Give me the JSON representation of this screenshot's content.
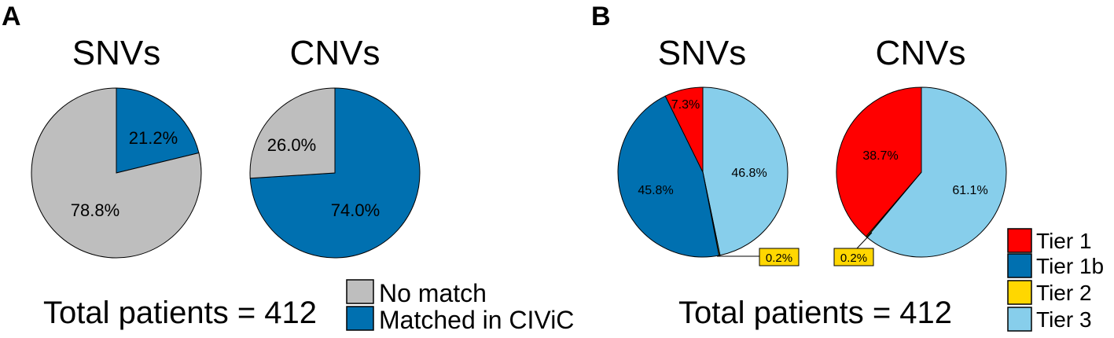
{
  "colors": {
    "no_match": "#BEBEBE",
    "matched": "#0070B0",
    "tier1": "#FF0000",
    "tier1b": "#0070B0",
    "tier2": "#FFD700",
    "tier3": "#87CEEB"
  },
  "panels": {
    "a": {
      "letter": "A",
      "total": "Total patients = 412"
    },
    "b": {
      "letter": "B",
      "total": "Total patients = 412"
    }
  },
  "legend_a": [
    "No match",
    "Matched in CIViC"
  ],
  "legend_b": [
    "Tier 1",
    "Tier 1b",
    "Tier 2",
    "Tier 3"
  ],
  "chart_data": [
    {
      "type": "pie",
      "panel": "A",
      "title": "SNVs",
      "slices": [
        {
          "name": "Matched in CIViC",
          "value": 21.2,
          "label": "21.2%",
          "color": "#0070B0"
        },
        {
          "name": "No match",
          "value": 78.8,
          "label": "78.8%",
          "color": "#BEBEBE"
        }
      ]
    },
    {
      "type": "pie",
      "panel": "A",
      "title": "CNVs",
      "slices": [
        {
          "name": "Matched in CIViC",
          "value": 74.0,
          "label": "74.0%",
          "color": "#0070B0"
        },
        {
          "name": "No match",
          "value": 26.0,
          "label": "26.0%",
          "color": "#BEBEBE"
        }
      ]
    },
    {
      "type": "pie",
      "panel": "B",
      "title": "SNVs",
      "slices": [
        {
          "name": "Tier 3",
          "value": 46.8,
          "label": "46.8%",
          "color": "#87CEEB"
        },
        {
          "name": "Tier 2",
          "value": 0.2,
          "label": "0.2%",
          "color": "#FFD700"
        },
        {
          "name": "Tier 1b",
          "value": 45.8,
          "label": "45.8%",
          "color": "#0070B0"
        },
        {
          "name": "Tier 1",
          "value": 7.3,
          "label": "7.3%",
          "color": "#FF0000"
        }
      ]
    },
    {
      "type": "pie",
      "panel": "B",
      "title": "CNVs",
      "slices": [
        {
          "name": "Tier 3",
          "value": 61.1,
          "label": "61.1%",
          "color": "#87CEEB"
        },
        {
          "name": "Tier 2",
          "value": 0.2,
          "label": "0.2%",
          "color": "#FFD700"
        },
        {
          "name": "Tier 1",
          "value": 38.7,
          "label": "38.7%",
          "color": "#FF0000"
        }
      ]
    }
  ]
}
